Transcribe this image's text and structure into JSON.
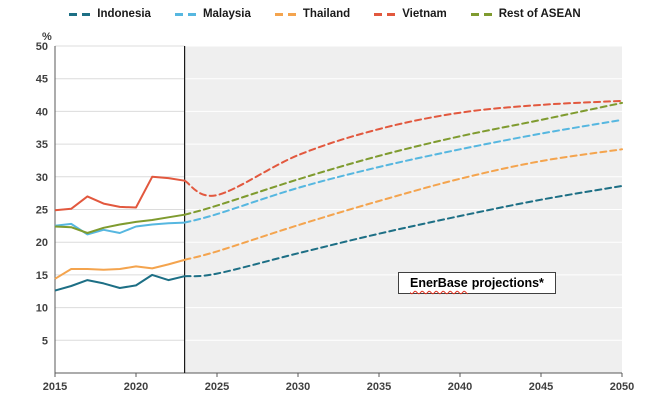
{
  "annotation": {
    "word": "EnerBase",
    "rest": "projections*"
  },
  "chart_data": {
    "type": "line",
    "title": "",
    "ylabel": "%",
    "xlabel": "",
    "ylim": [
      0,
      50
    ],
    "yticks": [
      5,
      10,
      15,
      20,
      25,
      30,
      35,
      40,
      45,
      50
    ],
    "xlim": [
      2015,
      2050
    ],
    "xticks": [
      2015,
      2020,
      2025,
      2030,
      2035,
      2040,
      2045,
      2050
    ],
    "divider_x": 2023,
    "projection_bg": "#efefef",
    "grid": "on",
    "legend_position": "top",
    "annotation": "EnerBase projections*",
    "historical_years": [
      2015,
      2016,
      2017,
      2018,
      2019,
      2020,
      2021,
      2022,
      2023
    ],
    "projection_years": [
      2023,
      2025,
      2030,
      2035,
      2040,
      2045,
      2050
    ],
    "series": [
      {
        "name": "Indonesia",
        "color": "#1d6f85",
        "historical": [
          12.6,
          13.3,
          14.2,
          13.7,
          13.0,
          13.4,
          15.0,
          14.2,
          14.8
        ],
        "projection": [
          14.8,
          15.2,
          18.3,
          21.3,
          24.0,
          26.5,
          28.6
        ]
      },
      {
        "name": "Malaysia",
        "color": "#56b7e0",
        "historical": [
          22.5,
          22.8,
          21.2,
          21.9,
          21.4,
          22.4,
          22.7,
          22.9,
          23.0
        ],
        "projection": [
          23.0,
          24.3,
          28.3,
          31.5,
          34.2,
          36.6,
          38.7
        ]
      },
      {
        "name": "Thailand",
        "color": "#f4a44e",
        "historical": [
          14.4,
          15.9,
          15.9,
          15.8,
          15.9,
          16.3,
          16.0,
          16.6,
          17.3
        ],
        "projection": [
          17.3,
          18.6,
          22.6,
          26.3,
          29.7,
          32.4,
          34.2
        ]
      },
      {
        "name": "Vietnam",
        "color": "#e2583e",
        "historical": [
          24.9,
          25.1,
          27.0,
          25.9,
          25.4,
          25.3,
          30.0,
          29.8,
          29.4
        ],
        "projection": [
          29.4,
          27.2,
          33.3,
          37.3,
          39.8,
          41.0,
          41.6
        ]
      },
      {
        "name": "Rest of ASEAN",
        "color": "#7f9b2f",
        "historical": [
          22.4,
          22.3,
          21.4,
          22.2,
          22.7,
          23.1,
          23.4,
          23.8,
          24.2
        ],
        "projection": [
          24.2,
          25.6,
          29.6,
          33.2,
          36.2,
          38.7,
          41.3
        ]
      }
    ]
  }
}
